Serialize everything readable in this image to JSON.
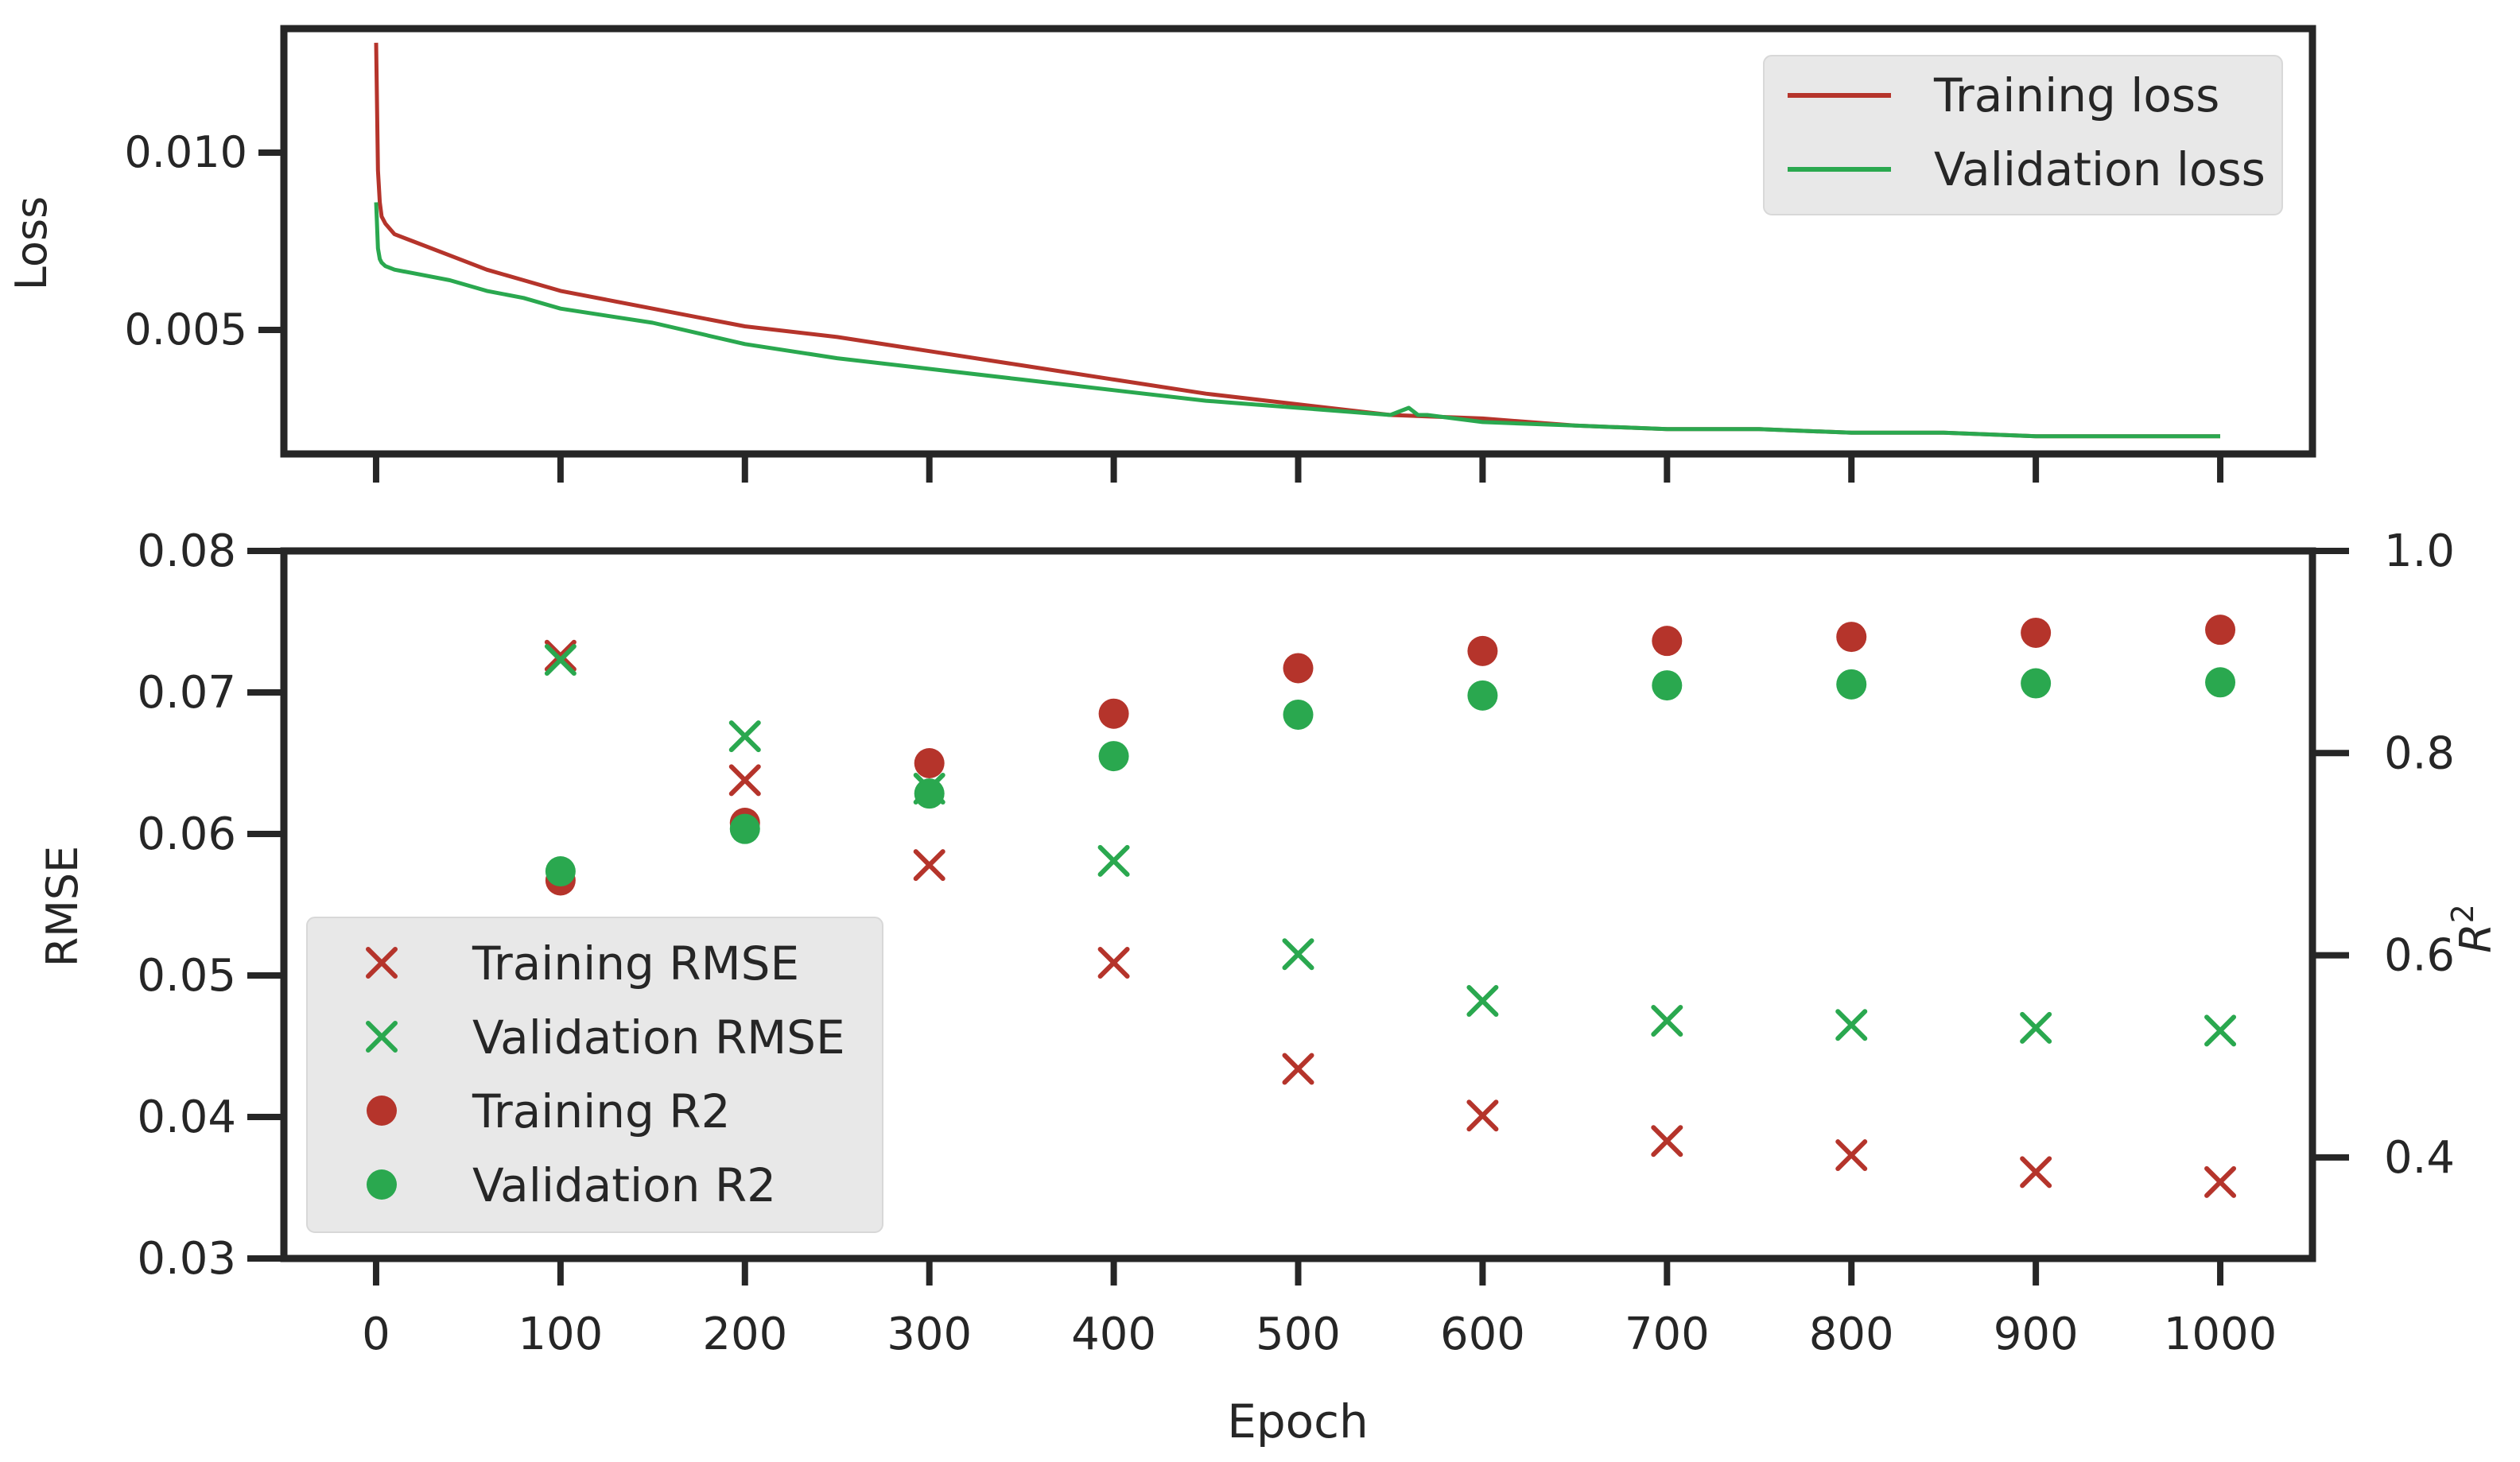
{
  "chart_data": [
    {
      "type": "line",
      "panel": "top",
      "title": "",
      "xlabel": "",
      "ylabel": "Loss",
      "xlim": [
        -50,
        1050
      ],
      "ylim": [
        0.0015,
        0.0135
      ],
      "xticks": [
        0,
        100,
        200,
        300,
        400,
        500,
        600,
        700,
        800,
        900,
        1000
      ],
      "yticks": [
        0.005,
        0.01
      ],
      "ytick_labels": [
        "0.005",
        "0.010"
      ],
      "legend_position": "upper right",
      "grid": false,
      "series": [
        {
          "name": "Training loss",
          "color": "#b5342b",
          "x": [
            0,
            1,
            2,
            3,
            5,
            10,
            20,
            40,
            60,
            80,
            100,
            150,
            200,
            250,
            300,
            350,
            400,
            450,
            500,
            550,
            600,
            650,
            700,
            750,
            800,
            850,
            900,
            950,
            1000
          ],
          "y": [
            0.0131,
            0.0095,
            0.0086,
            0.0082,
            0.008,
            0.0077,
            0.0075,
            0.0071,
            0.0067,
            0.0064,
            0.0061,
            0.0056,
            0.0051,
            0.0048,
            0.0044,
            0.004,
            0.0036,
            0.0032,
            0.0029,
            0.0026,
            0.0025,
            0.0023,
            0.0022,
            0.0022,
            0.0021,
            0.0021,
            0.002,
            0.002,
            0.002
          ]
        },
        {
          "name": "Validation loss",
          "color": "#2aa84f",
          "x": [
            0,
            1,
            2,
            3,
            5,
            10,
            20,
            40,
            60,
            80,
            100,
            150,
            200,
            250,
            300,
            350,
            400,
            450,
            500,
            550,
            560,
            565,
            570,
            600,
            650,
            700,
            750,
            800,
            850,
            900,
            950,
            1000
          ],
          "y": [
            0.0086,
            0.0073,
            0.007,
            0.0069,
            0.0068,
            0.0067,
            0.0066,
            0.0064,
            0.0061,
            0.0059,
            0.0056,
            0.0052,
            0.0046,
            0.0042,
            0.0039,
            0.0036,
            0.0033,
            0.003,
            0.0028,
            0.0026,
            0.0028,
            0.0026,
            0.0026,
            0.0024,
            0.0023,
            0.0022,
            0.0022,
            0.0021,
            0.0021,
            0.002,
            0.002,
            0.002
          ]
        }
      ]
    },
    {
      "type": "scatter",
      "panel": "bottom",
      "title": "",
      "xlabel": "Epoch",
      "ylabel": "RMSE",
      "y2label_base": "R",
      "y2label_sup": "2",
      "xlim": [
        -50,
        1050
      ],
      "ylim": [
        0.03,
        0.08
      ],
      "y2lim": [
        0.3,
        1.0
      ],
      "xticks": [
        0,
        100,
        200,
        300,
        400,
        500,
        600,
        700,
        800,
        900,
        1000
      ],
      "xtick_labels": [
        "0",
        "100",
        "200",
        "300",
        "400",
        "500",
        "600",
        "700",
        "800",
        "900",
        "1000"
      ],
      "yticks": [
        0.03,
        0.04,
        0.05,
        0.06,
        0.07,
        0.08
      ],
      "ytick_labels": [
        "0.03",
        "0.04",
        "0.05",
        "0.06",
        "0.07",
        "0.08"
      ],
      "y2ticks": [
        0.4,
        0.6,
        0.8,
        1.0
      ],
      "y2tick_labels": [
        "0.4",
        "0.6",
        "0.8",
        "1.0"
      ],
      "legend_position": "lower left",
      "grid": false,
      "series": [
        {
          "name": "Training RMSE",
          "marker": "x",
          "axis": "left",
          "color": "#b5342b",
          "x": [
            100,
            200,
            300,
            400,
            500,
            600,
            700,
            800,
            900,
            1000
          ],
          "y": [
            0.0726,
            0.0638,
            0.0578,
            0.0509,
            0.0434,
            0.0401,
            0.0383,
            0.0373,
            0.0361,
            0.0354
          ]
        },
        {
          "name": "Validation RMSE",
          "marker": "x",
          "axis": "left",
          "color": "#2aa84f",
          "x": [
            100,
            200,
            300,
            400,
            500,
            600,
            700,
            800,
            900,
            1000
          ],
          "y": [
            0.0723,
            0.0669,
            0.0632,
            0.0581,
            0.0515,
            0.0482,
            0.0468,
            0.0465,
            0.0463,
            0.0461
          ]
        },
        {
          "name": "Training R2",
          "marker": "o",
          "axis": "right",
          "color": "#b5342b",
          "x": [
            100,
            200,
            300,
            400,
            500,
            600,
            700,
            800,
            900,
            1000
          ],
          "y": [
            0.674,
            0.731,
            0.79,
            0.839,
            0.884,
            0.901,
            0.911,
            0.915,
            0.919,
            0.922
          ]
        },
        {
          "name": "Validation R2",
          "marker": "o",
          "axis": "right",
          "color": "#2aa84f",
          "x": [
            100,
            200,
            300,
            400,
            500,
            600,
            700,
            800,
            900,
            1000
          ],
          "y": [
            0.683,
            0.725,
            0.76,
            0.797,
            0.838,
            0.857,
            0.867,
            0.868,
            0.869,
            0.87
          ]
        }
      ]
    }
  ]
}
